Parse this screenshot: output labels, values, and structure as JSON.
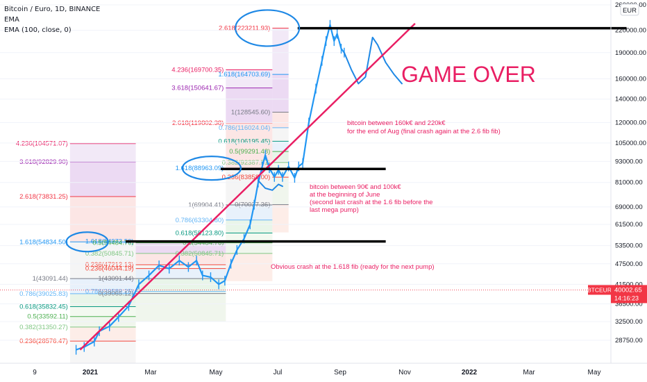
{
  "header": {
    "symbol_line": "Bitcoin / Euro, 1D, BINANCE",
    "indicator_1": "EMA",
    "indicator_2": "EMA (100, close, 0)"
  },
  "currency_badge": "EUR",
  "price_tag": {
    "symbol": "BTCEUR",
    "price": "40002.65",
    "countdown": "14:16:23"
  },
  "annotations": {
    "game_over": "GAME OVER",
    "note_aug_1": "bitcoin between 160k€ and 220k€",
    "note_aug_2": "for the end of Aug (final crash again at the 2.6 fib fib)",
    "note_june_1": "bitcoin between 90€ and 100k€",
    "note_june_2": "at the beginning of June",
    "note_june_3": "(second last crash at the 1.6 fib before the",
    "note_june_4": "last mega pump)",
    "note_crash": "Obvious crash at the 1.618 fib (ready for the next pump)"
  },
  "colors": {
    "candles": "#2196f3",
    "trendline": "#e91e63",
    "projection": "#1e88e5",
    "circle": "#1e88e5",
    "annotation": "#e91e63",
    "level_line": "#000000"
  },
  "chart_data": {
    "type": "line",
    "title": "Bitcoin / Euro, 1D, BINANCE",
    "y_scale": "log",
    "y_ticks": [
      "260000.00",
      "220000.00",
      "190000.00",
      "160000.00",
      "140000.00",
      "120000.00",
      "105000.00",
      "93000.00",
      "81000.00",
      "69000.00",
      "61500.00",
      "53500.00",
      "47500.00",
      "41500.00",
      "36500.00",
      "32500.00",
      "28750.00"
    ],
    "x_ticks": [
      "9",
      "2021",
      "Mar",
      "May",
      "Jul",
      "Sep",
      "Nov",
      "2022",
      "Mar",
      "May"
    ],
    "ylim": [
      26000,
      265000
    ],
    "price_series": {
      "name": "BTCEUR",
      "points": [
        [
          "2020-12-18",
          27000
        ],
        [
          "2020-12-26",
          27500
        ],
        [
          "2021-01-05",
          28500
        ],
        [
          "2021-01-10",
          30500
        ],
        [
          "2021-01-20",
          31500
        ],
        [
          "2021-01-29",
          33500
        ],
        [
          "2021-02-08",
          36000
        ],
        [
          "2021-02-18",
          41500
        ],
        [
          "2021-02-28",
          44000
        ],
        [
          "2021-03-10",
          47000
        ],
        [
          "2021-03-20",
          46000
        ],
        [
          "2021-03-30",
          48500
        ],
        [
          "2021-04-08",
          46500
        ],
        [
          "2021-04-16",
          48500
        ],
        [
          "2021-04-22",
          44000
        ],
        [
          "2021-04-30",
          43500
        ],
        [
          "2021-05-08",
          41500
        ],
        [
          "2021-05-14",
          42500
        ],
        [
          "2021-05-20",
          47500
        ],
        [
          "2021-05-26",
          52000
        ],
        [
          "2021-06-02",
          56000
        ],
        [
          "2021-06-08",
          61500
        ],
        [
          "2021-06-12",
          70000
        ],
        [
          "2021-06-16",
          81000
        ],
        [
          "2021-06-20",
          90000
        ],
        [
          "2021-06-23",
          97000
        ],
        [
          "2021-06-27",
          89000
        ],
        [
          "2021-07-02",
          84000
        ],
        [
          "2021-07-06",
          88000
        ],
        [
          "2021-07-10",
          84000
        ],
        [
          "2021-07-16",
          90000
        ],
        [
          "2021-07-22",
          83500
        ],
        [
          "2021-07-26",
          90000
        ],
        [
          "2021-07-30",
          92000
        ],
        [
          "2021-08-05",
          120000
        ],
        [
          "2021-08-12",
          150000
        ],
        [
          "2021-08-18",
          180000
        ],
        [
          "2021-08-22",
          205000
        ],
        [
          "2021-08-26",
          228000
        ],
        [
          "2021-08-30",
          205000
        ],
        [
          "2021-09-02",
          215000
        ],
        [
          "2021-09-06",
          195000
        ],
        [
          "2021-09-09",
          190000
        ]
      ]
    },
    "projections": [
      {
        "points": [
          [
            "2021-06-16",
            82000
          ],
          [
            "2021-06-23",
            78000
          ],
          [
            "2021-06-30",
            77000
          ],
          [
            "2021-07-06",
            80000
          ],
          [
            "2021-07-10",
            79000
          ]
        ]
      },
      {
        "points": [
          [
            "2021-09-09",
            190000
          ],
          [
            "2021-09-16",
            170000
          ],
          [
            "2021-09-23",
            155000
          ],
          [
            "2021-09-30",
            162000
          ],
          [
            "2021-10-07",
            210000
          ],
          [
            "2021-10-12",
            200000
          ],
          [
            "2021-10-20",
            178000
          ],
          [
            "2021-10-28",
            165000
          ],
          [
            "2021-11-05",
            155000
          ]
        ]
      }
    ],
    "trendline": [
      [
        "2020-12-22",
        27000
      ],
      [
        "2021-11-18",
        230000
      ]
    ],
    "level_lines": [
      {
        "from": "2021-02-05",
        "to": "2021-10-20",
        "value": 55000
      },
      {
        "from": "2021-05-10",
        "to": "2021-10-20",
        "value": 88500
      },
      {
        "from": "2021-07-25",
        "to": "2022-06-15",
        "value": 223000
      }
    ],
    "fib_sets": [
      {
        "x_start": "2020-12-12",
        "x_end": "2021-02-15",
        "bands": [
          [
            "4.236(104571.07)",
            104571.07
          ],
          [
            "3.618(92829.90)",
            92829.9
          ],
          [
            "2.618(73831.25)",
            73831.25
          ],
          [
            "1.618(54834.50)",
            54834.5
          ],
          [
            "1(43091.44)",
            43091.44
          ],
          [
            "0.786(39025.83)",
            39025.83
          ],
          [
            "0.618(35832.45)",
            35832.45
          ],
          [
            "0.5(33592.11)",
            33592.11
          ],
          [
            "0.382(31350.27)",
            31350.27
          ],
          [
            "0.236(28576.47)",
            28576.47
          ]
        ]
      },
      {
        "x_start": "2021-02-15",
        "x_end": "2021-05-15",
        "bands": [
          [
            "1.618(54973.50)",
            54973.5
          ],
          [
            "0.5(54484.76)",
            54484.76
          ],
          [
            "0.382(50845.71)",
            50845.71
          ],
          [
            "0.236(47212.13)",
            47212.13
          ],
          [
            "0.236(46044.19)",
            46044.19
          ],
          [
            "1(43091.44)",
            43091.44
          ],
          [
            "0.786(39589.25)",
            39589.25
          ],
          [
            "0(39065.12)",
            39065.12
          ]
        ]
      },
      {
        "x_start": "2021-05-15",
        "x_end": "2021-06-30",
        "bands": [
          [
            "4.236(169700.35)",
            169700.35
          ],
          [
            "3.618(150641.67)",
            150641.67
          ],
          [
            "2.618(119802.38)",
            119802.38
          ],
          [
            "1.618(88963.09)",
            88963.09
          ],
          [
            "1(69904.41)",
            69904.41
          ],
          [
            "0.786(63304.80)",
            63304.8
          ],
          [
            "0.618(58123.80)",
            58123.8
          ],
          [
            "0.5(54484.76)",
            54484.76
          ],
          [
            "0.382(50845.71)",
            50845.71
          ]
        ]
      },
      {
        "x_start": "2021-06-30",
        "x_end": "2021-07-16",
        "bands": [
          [
            "2.618(223211.93)",
            223211.93
          ],
          [
            "1.618(164703.69)",
            164703.69
          ],
          [
            "1(128545.60)",
            128545.6
          ],
          [
            "0.786(116024.04)",
            116024.04
          ],
          [
            "0.618(106195.45)",
            106195.45
          ],
          [
            "0.5(99291.48)",
            99291.48
          ],
          [
            "0.382(92387.51)",
            92387.51
          ],
          [
            "0.236(83858.00)",
            83858.0
          ],
          [
            "0(70037.36)",
            70037.36
          ]
        ]
      }
    ]
  }
}
